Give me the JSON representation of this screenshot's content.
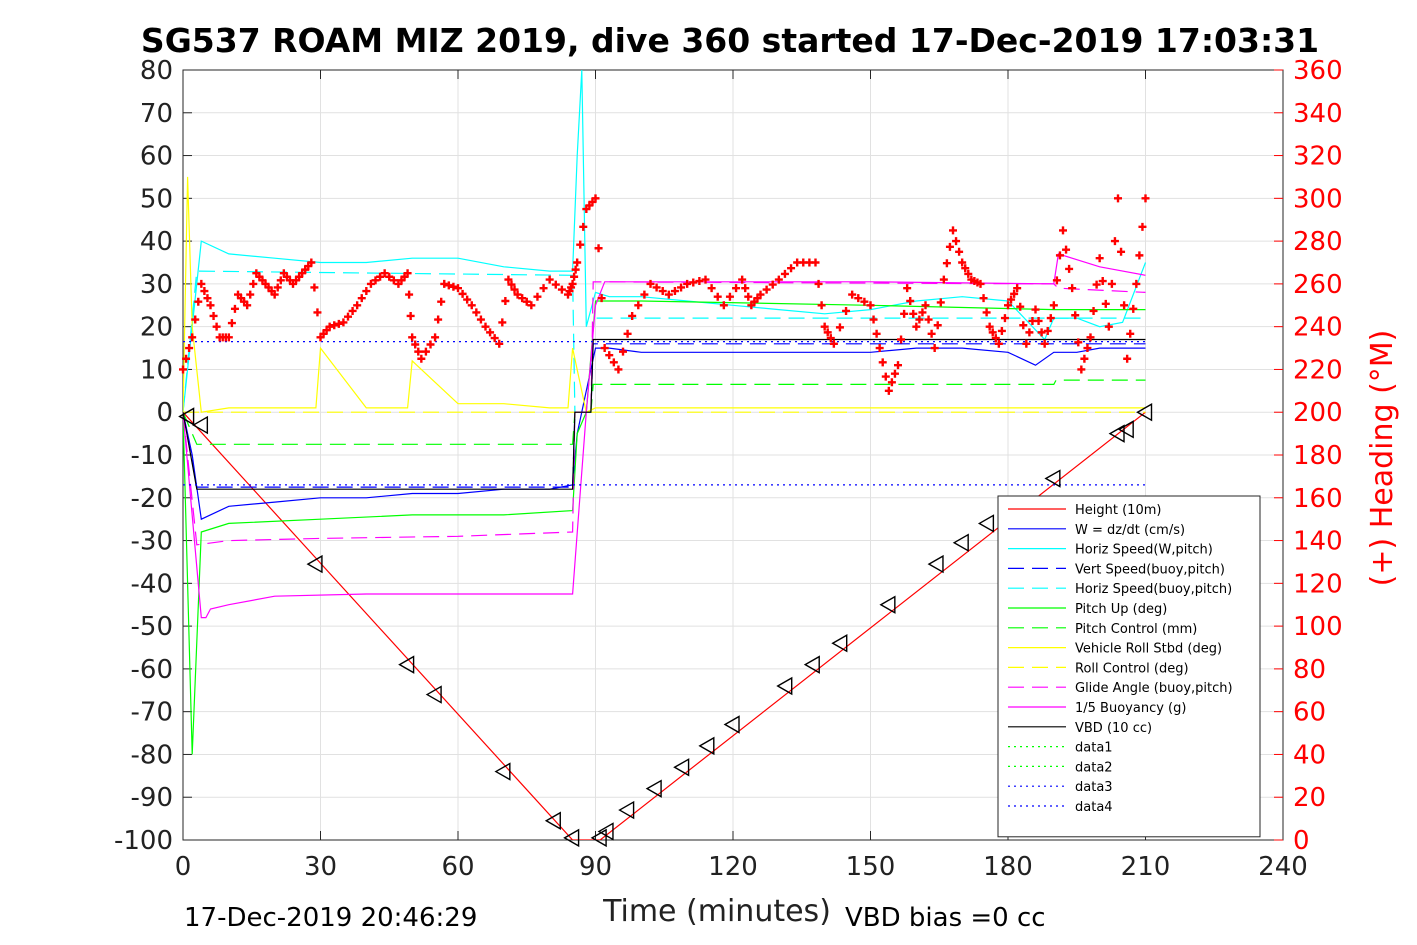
{
  "chart_data": {
    "type": "line",
    "title": "SG537 ROAM MIZ 2019, dive 360 started 17-Dec-2019 17:03:31",
    "xlabel": "Time (minutes)",
    "ylabel": "",
    "ylabel_right": "(+) Heading (°M)",
    "xlim": [
      0,
      240
    ],
    "ylim": [
      -100,
      80
    ],
    "ylim_right": [
      0,
      360
    ],
    "x_ticks": [
      "0",
      "30",
      "60",
      "90",
      "120",
      "150",
      "180",
      "210",
      "240"
    ],
    "y_ticks": [
      "80",
      "70",
      "60",
      "50",
      "40",
      "30",
      "20",
      "10",
      "0",
      "-10",
      "-20",
      "-30",
      "-40",
      "-50",
      "-60",
      "-70",
      "-80",
      "-90",
      "-100"
    ],
    "y_ticks_right": [
      "360",
      "340",
      "320",
      "300",
      "280",
      "260",
      "240",
      "220",
      "200",
      "180",
      "160",
      "140",
      "120",
      "100",
      "80",
      "60",
      "40",
      "20",
      "0"
    ],
    "grid": true,
    "legend_position": "bottom-right",
    "footer_left": "17-Dec-2019 20:46:29",
    "footer_right": "VBD bias =0 cc",
    "series": [
      {
        "name": "Height (10m)",
        "color": "#ff0000",
        "style": "solid",
        "x": [
          0,
          85,
          91,
          210
        ],
        "y": [
          0,
          -100,
          -100,
          0
        ]
      },
      {
        "name": "W = dz/dt (cm/s)",
        "color": "#0000ff",
        "style": "solid",
        "x": [
          0,
          2,
          4,
          10,
          20,
          30,
          40,
          50,
          60,
          70,
          80,
          85,
          86,
          88,
          90,
          93,
          100,
          110,
          120,
          130,
          140,
          150,
          160,
          170,
          180,
          186,
          190,
          195,
          200,
          205,
          210
        ],
        "y": [
          0,
          -10,
          -25,
          -22,
          -21,
          -20,
          -20,
          -19,
          -19,
          -18,
          -18,
          -17,
          -5,
          5,
          15,
          15,
          14,
          14,
          14,
          14,
          14,
          14,
          15,
          15,
          14,
          11,
          14,
          14,
          15,
          15,
          15
        ]
      },
      {
        "name": "Horiz Speed(W,pitch)",
        "color": "#00ffff",
        "style": "solid",
        "x": [
          0,
          2,
          4,
          10,
          20,
          30,
          40,
          50,
          60,
          70,
          80,
          85,
          86,
          87,
          88,
          90,
          93,
          100,
          110,
          120,
          130,
          140,
          150,
          160,
          170,
          180,
          188,
          190,
          195,
          200,
          205,
          210
        ],
        "y": [
          0,
          20,
          40,
          37,
          36,
          35,
          35,
          36,
          36,
          34,
          33,
          33,
          60,
          80,
          20,
          28,
          27,
          27,
          26,
          25,
          24,
          23,
          24,
          26,
          27,
          26,
          17,
          22,
          22,
          20,
          21,
          35
        ]
      },
      {
        "name": "Vert Speed(buoy,pitch)",
        "color": "#0000ff",
        "style": "dashed",
        "x": [
          0,
          3,
          85,
          85.5,
          89,
          89.5,
          210
        ],
        "y": [
          0,
          -17.5,
          -17.5,
          0,
          0,
          16,
          16
        ]
      },
      {
        "name": "Horiz Speed(buoy,pitch)",
        "color": "#00ffff",
        "style": "dashed",
        "x": [
          0,
          3,
          85,
          85.5,
          89,
          89.5,
          210
        ],
        "y": [
          0,
          33,
          32,
          0,
          0,
          22,
          22
        ]
      },
      {
        "name": "Pitch Up (deg)",
        "color": "#00ff00",
        "style": "solid",
        "x": [
          0,
          2,
          4,
          10,
          30,
          50,
          70,
          85,
          86,
          88,
          90,
          100,
          150,
          190,
          200,
          210
        ],
        "y": [
          0,
          -80,
          -28,
          -26,
          -25,
          -24,
          -24,
          -23,
          -5,
          0,
          26,
          26,
          25,
          24,
          24,
          24
        ]
      },
      {
        "name": "Pitch Control (mm)",
        "color": "#00ff00",
        "style": "dashed",
        "x": [
          0,
          3,
          85,
          85.5,
          89,
          89.5,
          190,
          190.5,
          210
        ],
        "y": [
          0,
          -7.5,
          -7.5,
          0,
          0,
          6.5,
          6.5,
          7.5,
          7.5
        ]
      },
      {
        "name": "Vehicle Roll Stbd (deg)",
        "color": "#ffff00",
        "style": "solid",
        "x": [
          0,
          1,
          2,
          4,
          10,
          20,
          29,
          30,
          40,
          49,
          50,
          60,
          70,
          80,
          84,
          85,
          88,
          90,
          100,
          120,
          150,
          180,
          200,
          210
        ],
        "y": [
          0,
          55,
          20,
          0,
          1,
          1,
          1,
          15,
          1,
          1,
          12,
          2,
          2,
          1,
          1,
          15,
          0,
          1,
          1,
          1,
          1,
          1,
          1,
          1
        ]
      },
      {
        "name": "Roll Control (deg)",
        "color": "#ffff00",
        "style": "dashed",
        "x": [
          0,
          210
        ],
        "y": [
          0,
          0
        ]
      },
      {
        "name": "Glide Angle (buoy,pitch)",
        "color": "#ff00ff",
        "style": "dashed",
        "x": [
          0,
          3,
          10,
          30,
          60,
          85,
          85.5,
          89,
          89.5,
          190,
          191,
          210
        ],
        "y": [
          0,
          -31,
          -30,
          -29.5,
          -29,
          -28,
          0,
          0,
          30.5,
          30,
          29,
          28
        ]
      },
      {
        "name": "1/5 Buoyancy (g)",
        "color": "#ff00ff",
        "style": "solid",
        "x": [
          0,
          4,
          5,
          6,
          10,
          20,
          40,
          60,
          85,
          88,
          90,
          92,
          120,
          150,
          190,
          191,
          200,
          210
        ],
        "y": [
          0,
          -48,
          -48,
          -46,
          -45,
          -43,
          -42.5,
          -42.5,
          -42.5,
          0,
          25,
          30.5,
          30.5,
          30.5,
          30,
          37,
          34,
          32
        ]
      },
      {
        "name": "VBD (10 cc)",
        "color": "#000000",
        "style": "solid",
        "x": [
          0,
          3,
          85,
          85.5,
          89,
          89.5,
          210
        ],
        "y": [
          0,
          -18,
          -18,
          0,
          0,
          17,
          17
        ]
      },
      {
        "name": "data1",
        "color": "#00ff00",
        "style": "dotted",
        "x": [],
        "y": []
      },
      {
        "name": "data2",
        "color": "#00ff00",
        "style": "dotted",
        "x": [],
        "y": []
      },
      {
        "name": "data3",
        "color": "#0000ff",
        "style": "dotted",
        "x": [
          0,
          210
        ],
        "y": [
          -17,
          -17
        ]
      },
      {
        "name": "data4",
        "color": "#0000ff",
        "style": "dotted",
        "x": [
          0,
          210
        ],
        "y": [
          16.5,
          16.5
        ]
      }
    ],
    "heading": {
      "name": "(+) Heading (°M)",
      "color": "#ff0000",
      "marker": "+",
      "axis": "right",
      "x": [
        0,
        2,
        4,
        6,
        8,
        10,
        12,
        14,
        16,
        18,
        20,
        22,
        24,
        26,
        28,
        30,
        32,
        35,
        38,
        41,
        44,
        47,
        49,
        50,
        52,
        55,
        57,
        60,
        63,
        66,
        69,
        71,
        73,
        76,
        80,
        84,
        85,
        86,
        88,
        90,
        92,
        95,
        98,
        102,
        106,
        110,
        114,
        118,
        122,
        124,
        126,
        130,
        134,
        138,
        140,
        142,
        146,
        150,
        152,
        154,
        156,
        158,
        160,
        162,
        164,
        166,
        168,
        170,
        172,
        174,
        176,
        178,
        180,
        182,
        184,
        186,
        188,
        190,
        192,
        194,
        196,
        198,
        200,
        202,
        204,
        206,
        208,
        210
      ],
      "y": [
        220,
        235,
        260,
        250,
        235,
        235,
        255,
        250,
        265,
        260,
        255,
        265,
        260,
        265,
        270,
        235,
        240,
        242,
        250,
        260,
        265,
        260,
        265,
        235,
        225,
        235,
        260,
        258,
        250,
        240,
        232,
        262,
        255,
        250,
        262,
        255,
        260,
        270,
        295,
        300,
        230,
        220,
        245,
        260,
        255,
        260,
        262,
        250,
        262,
        250,
        255,
        262,
        270,
        270,
        240,
        232,
        255,
        250,
        230,
        210,
        222,
        258,
        240,
        250,
        230,
        262,
        285,
        270,
        262,
        260,
        240,
        232,
        250,
        258,
        232,
        248,
        232,
        250,
        285,
        258,
        220,
        235,
        272,
        240,
        300,
        225,
        260,
        300
      ]
    },
    "markers": {
      "name": "Height markers",
      "color": "#000000",
      "x": [
        1,
        4,
        29,
        49,
        55,
        70,
        81,
        85,
        91,
        92.5,
        97,
        103,
        109,
        114.5,
        120,
        131.5,
        137.5,
        143.5,
        154,
        164.5,
        170,
        175.5,
        190,
        204,
        206,
        210
      ],
      "y": [
        -1,
        -3,
        -35.5,
        -59,
        -66,
        -84,
        -95.5,
        -99.5,
        -99.5,
        -98,
        -93,
        -88,
        -83,
        -78,
        -73,
        -64,
        -59,
        -54,
        -45,
        -35.5,
        -30.5,
        -26,
        -15.5,
        -5,
        -4,
        0
      ]
    }
  }
}
